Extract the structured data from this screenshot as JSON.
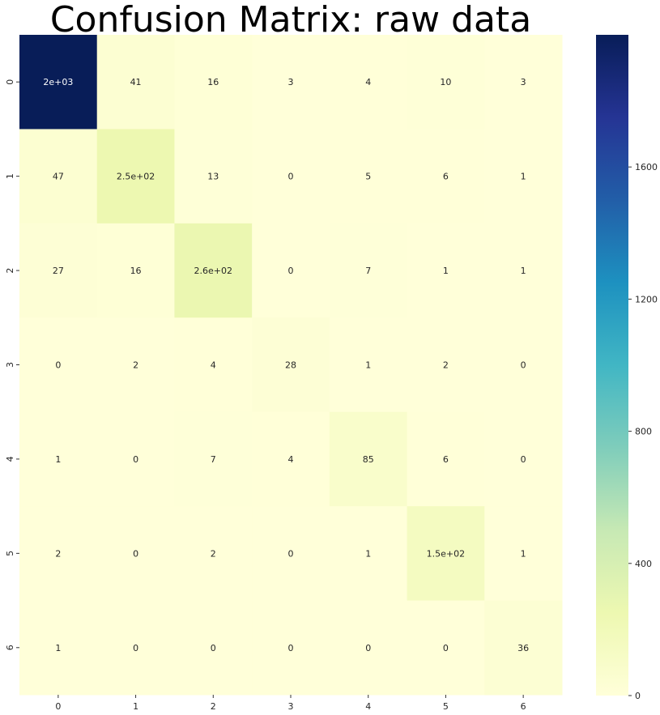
{
  "chart_data": {
    "type": "heatmap",
    "title": "Confusion Matrix: raw data",
    "xlabel": "",
    "ylabel": "",
    "x_categories": [
      "0",
      "1",
      "2",
      "3",
      "4",
      "5",
      "6"
    ],
    "y_categories": [
      "0",
      "1",
      "2",
      "3",
      "4",
      "5",
      "6"
    ],
    "values": [
      [
        2000,
        41,
        16,
        3,
        4,
        10,
        3
      ],
      [
        47,
        250,
        13,
        0,
        5,
        6,
        1
      ],
      [
        27,
        16,
        260,
        0,
        7,
        1,
        1
      ],
      [
        0,
        2,
        4,
        28,
        1,
        2,
        0
      ],
      [
        1,
        0,
        7,
        4,
        85,
        6,
        0
      ],
      [
        2,
        0,
        2,
        0,
        1,
        150,
        1
      ],
      [
        1,
        0,
        0,
        0,
        0,
        0,
        36
      ]
    ],
    "annotations": [
      [
        "2e+03",
        "41",
        "16",
        "3",
        "4",
        "10",
        "3"
      ],
      [
        "47",
        "2.5e+02",
        "13",
        "0",
        "5",
        "6",
        "1"
      ],
      [
        "27",
        "16",
        "2.6e+02",
        "0",
        "7",
        "1",
        "1"
      ],
      [
        "0",
        "2",
        "4",
        "28",
        "1",
        "2",
        "0"
      ],
      [
        "1",
        "0",
        "7",
        "4",
        "85",
        "6",
        "0"
      ],
      [
        "2",
        "0",
        "2",
        "0",
        "1",
        "1.5e+02",
        "1"
      ],
      [
        "1",
        "0",
        "0",
        "0",
        "0",
        "0",
        "36"
      ]
    ],
    "colorscale": "YlGnBu",
    "vmin": 0,
    "vmax": 2000,
    "colorbar_ticks": [
      0,
      400,
      800,
      1200,
      1600
    ],
    "colorbar_tick_labels": [
      "0",
      "400",
      "800",
      "1200",
      "1600"
    ],
    "colors": {
      "scale": [
        "#ffffd9",
        "#edf8b1",
        "#c7e9b4",
        "#7fcdbb",
        "#41b6c4",
        "#1d91c0",
        "#225ea8",
        "#253494",
        "#081d58"
      ]
    },
    "grid": false,
    "legend": "colorbar-right"
  }
}
